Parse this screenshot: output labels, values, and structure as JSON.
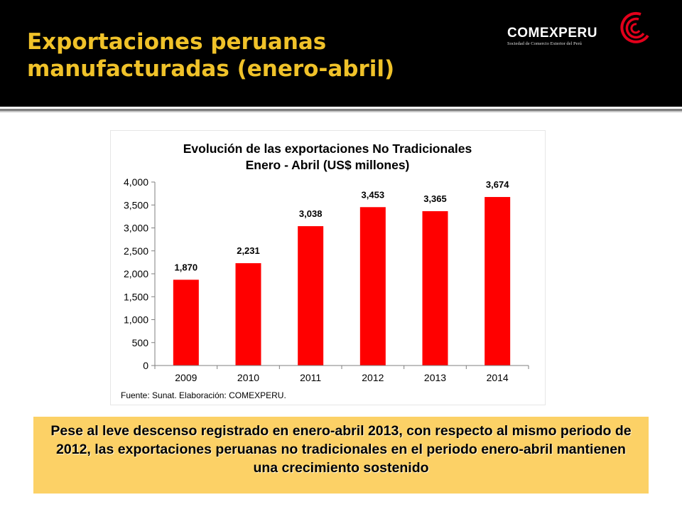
{
  "slide": {
    "title": "Exportaciones peruanas manufacturadas (enero-abril)",
    "title_color": "#f0c229",
    "header_background": "#000000"
  },
  "logo": {
    "wordmark": "COMEXPERU",
    "tagline": "Sociedad de Comercio Exterior del Perú",
    "accent_color": "#e3001b"
  },
  "chart_data": {
    "type": "bar",
    "title": "Evolución de las exportaciones No Tradicionales",
    "subtitle": "Enero - Abril (US$ millones)",
    "categories": [
      "2009",
      "2010",
      "2011",
      "2012",
      "2013",
      "2014"
    ],
    "values": [
      1870,
      2231,
      3038,
      3453,
      3365,
      3674
    ],
    "data_labels": [
      "1,870",
      "2,231",
      "3,038",
      "3,453",
      "3,365",
      "3,674"
    ],
    "yticks": [
      "0",
      "500",
      "1,000",
      "1,500",
      "2,000",
      "2,500",
      "3,000",
      "3,500",
      "4,000"
    ],
    "ylim": [
      0,
      4000
    ],
    "xlabel": "",
    "ylabel": "",
    "grid": false,
    "legend": "none",
    "bar_color": "#ff0000",
    "source": "Fuente: Sunat. Elaboración: COMEXPERU."
  },
  "callout": {
    "text": "Pese al leve descenso registrado en enero-abril 2013, con respecto al mismo periodo de 2012, las exportaciones peruanas no tradicionales en el periodo enero-abril mantienen una crecimiento sostenido",
    "background": "#fcd166"
  }
}
